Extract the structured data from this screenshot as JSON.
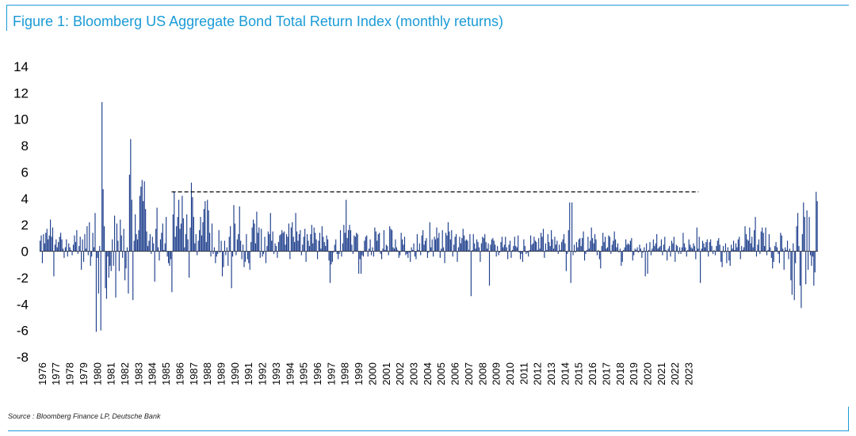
{
  "header": {
    "title": "Figure 1: Bloomberg US Aggregate Bond Total Return Index (monthly returns)"
  },
  "footer": {
    "source": "Source : Bloomberg Finance LP, Deutsche Bank"
  },
  "colors": {
    "accent": "#1a9bd7",
    "bars": "#1f3f8c",
    "reference_line": "#000000"
  },
  "chart_data": {
    "type": "bar",
    "title": "Figure 1: Bloomberg US Aggregate Bond Total Return Index (monthly returns)",
    "xlabel": "",
    "ylabel": "",
    "ylim": [
      -8,
      14
    ],
    "yticks": [
      14,
      12,
      10,
      8,
      6,
      4,
      2,
      0,
      -2,
      -4,
      -6,
      -8
    ],
    "x_tick_labels": [
      "1976",
      "1977",
      "1978",
      "1979",
      "1980",
      "1981",
      "1982",
      "1983",
      "1984",
      "1985",
      "1986",
      "1987",
      "1988",
      "1989",
      "1990",
      "1991",
      "1992",
      "1993",
      "1994",
      "1995",
      "1996",
      "1997",
      "1998",
      "1999",
      "2000",
      "2001",
      "2002",
      "2003",
      "2004",
      "2005",
      "2006",
      "2007",
      "2008",
      "2009",
      "2010",
      "2011",
      "2012",
      "2013",
      "2014",
      "2015",
      "2016",
      "2017",
      "2018",
      "2019",
      "2020",
      "2021",
      "2022",
      "2023"
    ],
    "start_year": 1976,
    "months_per_year": 12,
    "grid": false,
    "legend": "none",
    "reference_line": {
      "style": "dashed",
      "value": 4.5,
      "from_year": 1985.6,
      "to_year": 2023.9
    },
    "values": [
      0.8,
      1.2,
      -0.9,
      1.3,
      0.6,
      1.4,
      1.7,
      0.9,
      1.2,
      2.4,
      1.1,
      1.8,
      -1.9,
      0.5,
      0.9,
      0.3,
      0.7,
      1.1,
      1.4,
      0.9,
      0.2,
      -0.5,
      0.3,
      0.9,
      -0.4,
      0.6,
      0.3,
      0.1,
      -0.3,
      0.5,
      1.2,
      0.7,
      1.6,
      -0.2,
      0.4,
      1.1,
      -1.4,
      0.9,
      -0.8,
      1.3,
      0.2,
      1.9,
      -0.3,
      2.2,
      -1.1,
      -0.4,
      1.4,
      0.3,
      2.9,
      -6.1,
      -0.5,
      -3.2,
      0.4,
      -6,
      11.3,
      4.7,
      1.9,
      -2.8,
      -3.6,
      -0.4,
      -2,
      -1.1,
      -1.5,
      0.9,
      -1.1,
      2.7,
      -3.5,
      2.1,
      0.8,
      -1.5,
      2.4,
      1.2,
      -0.5,
      1.7,
      -2.2,
      -1.3,
      0.3,
      -3.2,
      5.8,
      8.5,
      3.9,
      -3.7,
      0.8,
      2.8,
      1.3,
      0.9,
      1.6,
      4.2,
      4.9,
      5.4,
      3.8,
      5.3,
      3.2,
      1.5,
      0.4,
      0.8,
      1.3,
      -0.2,
      1.1,
      0.6,
      -2.3,
      1.7,
      3.3,
      0.3,
      -0.7,
      0.9,
      1.4,
      2.1,
      0.1,
      0.6,
      2.6,
      -0.4,
      -0.9,
      -1.1,
      -0.6,
      -3.1,
      2.8,
      4.5,
      1.1,
      1.9,
      2.6,
      3.9,
      1.7,
      2.1,
      4.2,
      2.5,
      0.3,
      1.3,
      2.8,
      0.9,
      -2,
      1.8,
      5.2,
      4.1,
      2.6,
      0.6,
      1.3,
      -0.3,
      0.8,
      1.6,
      2.6,
      1.2,
      2.2,
      3.2,
      3.8,
      0.7,
      3.9,
      3.1,
      1.4,
      -0.4,
      2.1,
      -0.2,
      0.3,
      -0.9,
      -0.4,
      -0.2,
      1.6,
      -0.1,
      0.8,
      -1.9,
      -1.2,
      0.8,
      -0.3,
      0.3,
      -1.1,
      1.1,
      1.9,
      -2.8,
      -0.4,
      3.5,
      2.1,
      -0.3,
      0.9,
      1.3,
      3.4,
      0.8,
      -0.6,
      0.5,
      -1.2,
      -0.8,
      1.3,
      -0.6,
      -0.9,
      -1.4,
      0.7,
      1.8,
      2.4,
      2.1,
      0.6,
      3,
      1.4,
      1.8,
      -0.5,
      1.7,
      -0.4,
      -0.2,
      1.1,
      -0.9,
      0.4,
      1.5,
      1.3,
      2.9,
      0.8,
      1.5,
      -0.2,
      0.6,
      0.4,
      -0.5,
      0.7,
      1.2,
      1.3,
      1.6,
      1.4,
      1.5,
      0.5,
      1.3,
      1.1,
      2.1,
      -0.6,
      1.8,
      2.2,
      1.1,
      0.7,
      2.9,
      1.5,
      0.8,
      1.3,
      1.6,
      -0.3,
      0.5,
      1.1,
      1.7,
      -0.8,
      1.3,
      0.8,
      0.4,
      1.3,
      2,
      0.6,
      1.8,
      1.4,
      0.9,
      -0.6,
      0.8,
      1.4,
      0.2,
      1.9,
      1.1,
      0.7,
      0.4,
      1.2,
      0.9,
      -0.7,
      -2.4,
      -1,
      -0.8,
      -0.1,
      0.5,
      0.9,
      -0.2,
      -0.6,
      -0.2,
      1.6,
      -0.4,
      0.6,
      2,
      1.4,
      3.9,
      1,
      1.6,
      2,
      1.6,
      0.5,
      -0.2,
      1.2,
      1.1,
      1.4,
      1.3,
      -1.7,
      -0.6,
      -1.7,
      -0.3,
      -0.4,
      0.8,
      1.1,
      1.2,
      -0.4,
      0.2,
      0.9,
      -0.3,
      0.3,
      -0.4,
      1.8,
      1.5,
      0.8,
      1.3,
      1.4,
      -0.2,
      -0.6,
      0.2,
      1.6,
      0.1,
      0.5,
      0.4,
      -0.3,
      1.9,
      1.7,
      1.6,
      0.3,
      0.2,
      0.9,
      0.3,
      0.1,
      -0.5,
      -0.3,
      1.4,
      0.9,
      0.5,
      1.1,
      -0.3,
      -0.2,
      -0.5,
      -0.1,
      -0.8,
      0.3,
      0.1,
      0.6,
      -0.4,
      -0.6,
      1.3,
      0.1,
      0.6,
      -0.3,
      1.2,
      1.6,
      0.5,
      0.8,
      1,
      -0.5,
      -0.1,
      2.2,
      0.3,
      0.9,
      -0.4,
      1.1,
      0.9,
      1.8,
      1,
      1.4,
      -0.5,
      0.2,
      1.6,
      0.3,
      -0.9,
      1.4,
      1.2,
      2.2,
      1.5,
      0.9,
      1.6,
      -0.4,
      0.5,
      1.1,
      1.3,
      -0.8,
      0.3,
      1.1,
      0.6,
      1,
      1.7,
      1.2,
      0.8,
      0.9,
      0.8,
      0.1,
      1.3,
      -3.4,
      0.1,
      1.3,
      0.6,
      0.2,
      0.9,
      0.7,
      0.3,
      -0.8,
      0.6,
      1.1,
      1,
      1.3,
      0.7,
      0.2,
      0.6,
      -2.6,
      0.5,
      0.9,
      1,
      0.8,
      0.5,
      -0.4,
      0.4,
      -0.3,
      -0.1,
      0.7,
      1.1,
      0.3,
      0.5,
      1.1,
      0.3,
      -0.6,
      0.5,
      0.8,
      -0.5,
      0.1,
      0.4,
      1.1,
      0.4,
      0.3,
      1.2,
      -0.1,
      -0.6,
      -0.2,
      -0.8,
      0.9,
      0.4,
      -0.2,
      -0.1,
      -0.4,
      0.1,
      1.2,
      0.5,
      0.6,
      1.1,
      0.8,
      0.7,
      0.1,
      1,
      0.2,
      1.4,
      1.1,
      1.7,
      -0.5,
      0.6,
      0.1,
      1.3,
      0.7,
      0.4,
      1.6,
      0.9,
      0.2,
      1.1,
      0.5,
      0.8,
      -0.2,
      0.5,
      0.1,
      0.7,
      0.9,
      1.3,
      0.6,
      -1.5,
      -0.2,
      1.6,
      3.7,
      -2.4,
      3.7,
      -0.3,
      0.5,
      -0.1,
      0.7,
      0.3,
      0.9,
      1,
      0.4,
      1,
      1.5,
      -0.7,
      -0.2,
      0.1,
      1.1,
      0.2,
      0.8,
      1.8,
      1,
      0.6,
      1.3,
      0.9,
      -0.3,
      0.1,
      -0.6,
      -1.3,
      0.4,
      1.4,
      0.7,
      1.1,
      0.2,
      0.3,
      1.2,
      1.1,
      -0.2,
      0.5,
      0.8,
      1.5,
      0.9,
      0.3,
      0.6,
      -0.1,
      0.2,
      -1.1,
      -0.8,
      0.1,
      0.3,
      0.9,
      0.5,
      0.6,
      0.5,
      0.8,
      1,
      -0.7,
      -0.3,
      0.2,
      0.1,
      0.3,
      -0.1,
      0.5,
      0.2,
      -0.5,
      -0.1,
      0.3,
      -1.9,
      0.6,
      -1.7,
      0.1,
      0.7,
      -0.3,
      0.2,
      0.9,
      0.4,
      0.6,
      1.3,
      0.2,
      0.3,
      0.4,
      0.9,
      -0.3,
      0.5,
      1.1,
      0.1,
      -0.7,
      0.2,
      0.4,
      -0.4,
      0.8,
      0.6,
      1.1,
      -0.8,
      0.5,
      0.4,
      -0.2,
      0.3,
      -0.2,
      0.3,
      1.4,
      0.6,
      0.3,
      -0.4,
      0.1,
      0.9,
      0.5,
      0.3,
      0.2,
      0.6,
      0.4,
      -0.6,
      1.8,
      0.2,
      1.1,
      -2.4,
      0.2,
      0.8,
      0.6,
      0.3,
      0.7,
      0.9,
      -0.4,
      0.7,
      0.9,
      0.4,
      -0.2,
      0.1,
      -0.3,
      0.4,
      0.8,
      1,
      0.5,
      -0.8,
      -1.2,
      0.4,
      -0.1,
      0.6,
      -0.9,
      0.3,
      -0.7,
      -1.1,
      0.5,
      0.2,
      0.8,
      0.1,
      0.6,
      0.3,
      0.9,
      1.1,
      -0.6,
      0.4,
      0.1,
      0.3,
      1.9,
      1.3,
      0.9,
      0.8,
      1.8,
      0.6,
      1.1,
      0.3,
      1.6,
      2.6,
      -0.4,
      0.5,
      0.9,
      -0.2,
      1.5,
      1.8,
      1.4,
      0.4,
      1.8,
      -0.3,
      0.1,
      1.3,
      0.3,
      -0.5,
      -1.3,
      -0.8,
      0.4,
      0.7,
      0.3,
      -0.2,
      -0.9,
      1.4,
      1.2,
      0.2,
      -1.4,
      0.3,
      0.1,
      0.8,
      -0.6,
      0.2,
      -2.2,
      -3.3,
      0.6,
      -3.7,
      -0.9,
      1.9,
      2.9,
      0.4,
      -2.6,
      -4.3,
      1.3,
      3.7,
      2.6,
      -2.5,
      3.1,
      -1.4,
      2.6,
      -0.3,
      -1.1,
      -0.4,
      -2.6,
      -1.6,
      4.5,
      3.8
    ]
  }
}
